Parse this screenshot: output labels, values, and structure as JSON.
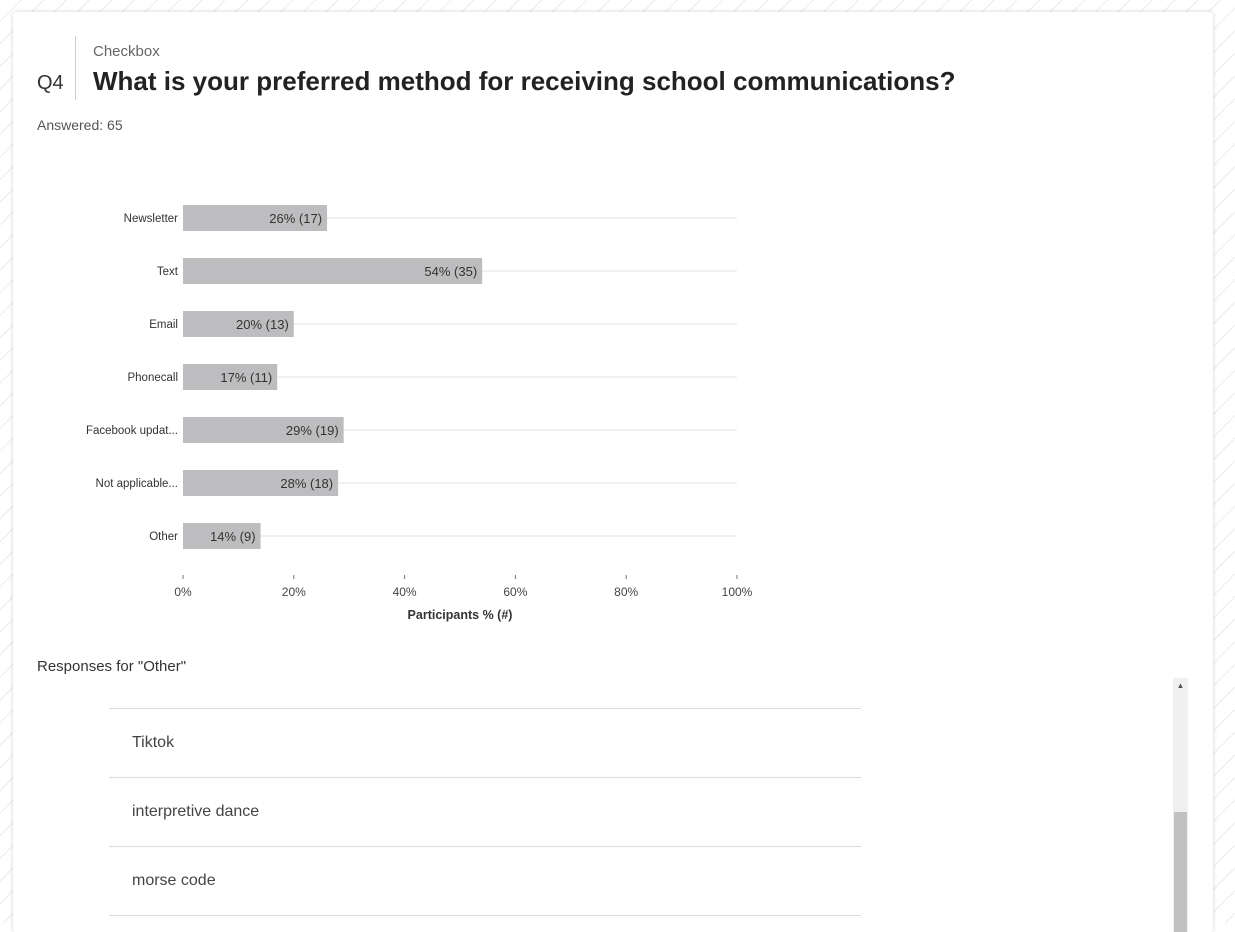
{
  "question": {
    "number": "Q4",
    "type": "Checkbox",
    "title": "What is your preferred method for receiving school communications?",
    "answered": "Answered: 65"
  },
  "chart_data": {
    "type": "bar",
    "orientation": "horizontal",
    "categories": [
      "Newsletter",
      "Text",
      "Email",
      "Phonecall",
      "Facebook updat...",
      "Not applicable...",
      "Other"
    ],
    "values": [
      26,
      54,
      20,
      17,
      29,
      28,
      14
    ],
    "data_labels": [
      "26% (17)",
      "54% (35)",
      "20% (13)",
      "17% (11)",
      "29% (19)",
      "28% (18)",
      "14% (9)"
    ],
    "xlim": [
      0,
      100
    ],
    "x_ticks": [
      "0%",
      "20%",
      "40%",
      "60%",
      "80%",
      "100%"
    ],
    "xlabel": "Participants % (#)",
    "bar_color": "#bdbdbf",
    "grid": true
  },
  "other_responses": {
    "heading": "Responses for \"Other\"",
    "items": [
      "Tiktok",
      "interpretive dance",
      "morse code"
    ]
  },
  "scrollbar": {
    "up_glyph": "▲",
    "position_fraction": 1.0
  }
}
